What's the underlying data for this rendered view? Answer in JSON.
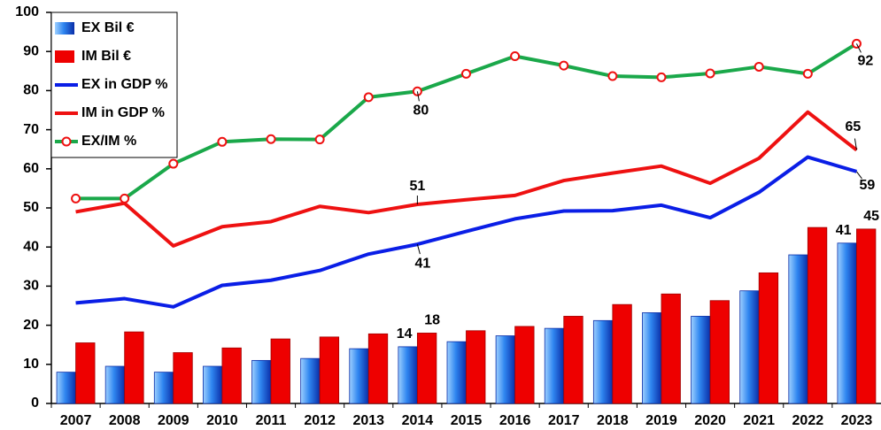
{
  "chart_data": {
    "type": "bar-line",
    "categories": [
      "2007",
      "2008",
      "2009",
      "2010",
      "2011",
      "2012",
      "2013",
      "2014",
      "2015",
      "2016",
      "2017",
      "2018",
      "2019",
      "2020",
      "2021",
      "2022",
      "2023"
    ],
    "ylim": [
      0,
      100
    ],
    "yticks": [
      0,
      10,
      20,
      30,
      40,
      50,
      60,
      70,
      80,
      90,
      100
    ],
    "grid": false,
    "legend": "top-left",
    "series": [
      {
        "name": "EX Bil €",
        "kind": "bar",
        "color": "#1f6fe0",
        "values": [
          8,
          9.5,
          8,
          9.5,
          11,
          11.5,
          14,
          14.5,
          15.8,
          17.3,
          19.2,
          21.2,
          23.2,
          22.3,
          28.8,
          38,
          41
        ],
        "value_labels": [
          null,
          null,
          null,
          null,
          null,
          null,
          null,
          "14",
          null,
          null,
          null,
          null,
          null,
          null,
          null,
          null,
          "41"
        ]
      },
      {
        "name": "IM Bil €",
        "kind": "bar",
        "color": "#ee0000",
        "values": [
          15.5,
          18.3,
          13,
          14.2,
          16.5,
          17,
          17.8,
          18,
          18.6,
          19.7,
          22.3,
          25.3,
          28,
          26.3,
          33.4,
          45,
          44.6
        ],
        "value_labels": [
          null,
          null,
          null,
          null,
          null,
          null,
          null,
          "18",
          null,
          null,
          null,
          null,
          null,
          null,
          null,
          null,
          "45"
        ]
      },
      {
        "name": "EX in GDP %",
        "kind": "line",
        "color": "#0a1ee6",
        "values": [
          25.7,
          26.8,
          24.7,
          30.2,
          31.5,
          34,
          38.2,
          40.7,
          44,
          47.2,
          49.2,
          49.3,
          50.7,
          47.5,
          54,
          63,
          59.3
        ],
        "value_labels": [
          null,
          null,
          null,
          null,
          null,
          null,
          null,
          "41",
          null,
          null,
          null,
          null,
          null,
          null,
          null,
          null,
          "59"
        ]
      },
      {
        "name": "IM in GDP %",
        "kind": "line",
        "color": "#ee1111",
        "values": [
          49,
          51.2,
          40.3,
          45.2,
          46.5,
          50.4,
          48.8,
          50.9,
          52.1,
          53.2,
          57,
          58.9,
          60.7,
          56.3,
          62.7,
          74.5,
          64.8
        ],
        "value_labels": [
          null,
          null,
          null,
          null,
          null,
          null,
          null,
          "51",
          null,
          null,
          null,
          null,
          null,
          null,
          null,
          null,
          "65"
        ]
      },
      {
        "name": "EX/IM %",
        "kind": "line-marker",
        "color": "#1aa84a",
        "values": [
          52.4,
          52.4,
          61.3,
          66.9,
          67.6,
          67.5,
          78.3,
          79.8,
          84.3,
          88.8,
          86.4,
          83.7,
          83.4,
          84.4,
          86.1,
          84.3,
          92
        ],
        "value_labels": [
          null,
          null,
          null,
          null,
          null,
          null,
          null,
          "80",
          null,
          null,
          null,
          null,
          null,
          null,
          null,
          null,
          "92"
        ]
      }
    ]
  }
}
